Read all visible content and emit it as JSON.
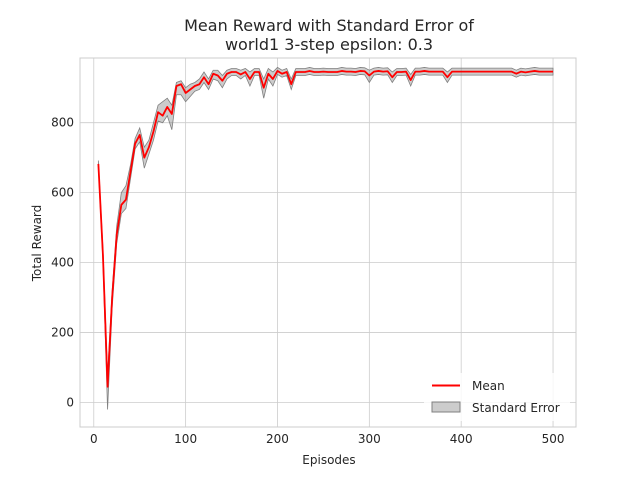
{
  "chart_data": {
    "type": "line",
    "title": [
      "Mean Reward with Standard Error of",
      "world1 3-step epsilon: 0.3"
    ],
    "xlabel": "Episodes",
    "ylabel": "Total Reward",
    "xlim": [
      -15,
      525
    ],
    "ylim": [
      -70,
      985
    ],
    "xticks": [
      0,
      100,
      200,
      300,
      400,
      500
    ],
    "yticks": [
      0,
      200,
      400,
      600,
      800
    ],
    "grid": true,
    "legend": {
      "placement": "lower right",
      "entries": [
        "Mean",
        "Standard Error"
      ]
    },
    "colors": {
      "mean": "#ff0000",
      "band": "#808080"
    },
    "x": [
      5,
      10,
      15,
      20,
      25,
      30,
      35,
      40,
      45,
      50,
      55,
      60,
      65,
      70,
      75,
      80,
      85,
      90,
      95,
      100,
      105,
      110,
      115,
      120,
      125,
      130,
      135,
      140,
      145,
      150,
      155,
      160,
      165,
      170,
      175,
      180,
      185,
      190,
      195,
      200,
      205,
      210,
      215,
      220,
      225,
      230,
      235,
      240,
      245,
      250,
      255,
      260,
      265,
      270,
      275,
      280,
      285,
      290,
      295,
      300,
      305,
      310,
      315,
      320,
      325,
      330,
      335,
      340,
      345,
      350,
      355,
      360,
      365,
      370,
      375,
      380,
      385,
      390,
      395,
      400,
      405,
      410,
      415,
      420,
      425,
      430,
      435,
      440,
      445,
      450,
      455,
      460,
      465,
      470,
      475,
      480,
      485,
      490,
      495,
      500
    ],
    "series": [
      {
        "name": "Mean",
        "values": [
          682,
          420,
          45,
          300,
          480,
          565,
          580,
          660,
          740,
          765,
          700,
          730,
          775,
          830,
          820,
          845,
          825,
          905,
          910,
          885,
          895,
          905,
          910,
          930,
          910,
          940,
          935,
          920,
          940,
          945,
          945,
          938,
          945,
          925,
          945,
          945,
          900,
          940,
          925,
          948,
          940,
          945,
          910,
          945,
          945,
          945,
          948,
          945,
          945,
          946,
          945,
          945,
          945,
          948,
          946,
          946,
          945,
          948,
          947,
          935,
          946,
          948,
          946,
          947,
          930,
          945,
          945,
          946,
          922,
          946,
          946,
          948,
          946,
          946,
          946,
          946,
          930,
          946,
          946,
          946,
          946,
          946,
          946,
          946,
          946,
          946,
          946,
          946,
          946,
          946,
          946,
          940,
          946,
          944,
          946,
          948,
          946,
          946,
          946,
          946
        ]
      },
      {
        "name": "Standard Error",
        "lower": [
          672,
          400,
          -20,
          270,
          455,
          540,
          555,
          640,
          725,
          745,
          670,
          710,
          750,
          805,
          800,
          820,
          780,
          880,
          880,
          860,
          875,
          890,
          895,
          915,
          895,
          925,
          920,
          900,
          925,
          935,
          935,
          925,
          935,
          905,
          935,
          935,
          870,
          925,
          905,
          938,
          930,
          935,
          895,
          935,
          935,
          935,
          938,
          935,
          935,
          936,
          935,
          935,
          935,
          938,
          936,
          936,
          935,
          938,
          937,
          915,
          936,
          938,
          936,
          937,
          915,
          935,
          935,
          936,
          905,
          936,
          936,
          938,
          936,
          936,
          936,
          936,
          915,
          936,
          936,
          936,
          936,
          936,
          936,
          936,
          936,
          936,
          936,
          936,
          936,
          936,
          936,
          930,
          936,
          934,
          936,
          938,
          936,
          936,
          936,
          936
        ],
        "upper": [
          692,
          440,
          80,
          320,
          505,
          600,
          620,
          680,
          755,
          785,
          730,
          750,
          800,
          850,
          860,
          870,
          850,
          915,
          920,
          900,
          910,
          915,
          925,
          945,
          925,
          950,
          950,
          935,
          950,
          955,
          955,
          950,
          955,
          945,
          955,
          955,
          925,
          955,
          945,
          958,
          950,
          955,
          925,
          955,
          955,
          955,
          958,
          955,
          955,
          956,
          955,
          955,
          955,
          958,
          956,
          956,
          955,
          958,
          957,
          950,
          956,
          958,
          956,
          957,
          945,
          955,
          955,
          956,
          938,
          956,
          956,
          958,
          956,
          956,
          956,
          956,
          945,
          956,
          956,
          956,
          956,
          956,
          956,
          956,
          956,
          956,
          956,
          956,
          956,
          956,
          956,
          950,
          956,
          954,
          956,
          958,
          956,
          956,
          956,
          956
        ]
      }
    ]
  }
}
